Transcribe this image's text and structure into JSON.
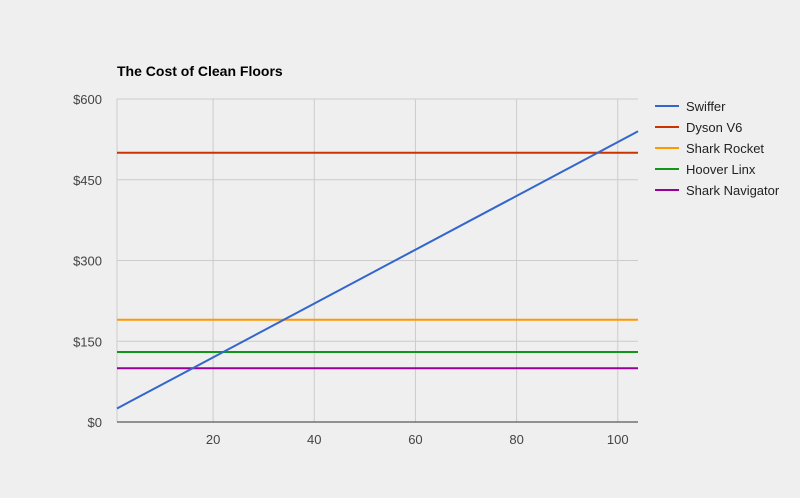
{
  "chart_data": {
    "type": "line",
    "title": "The Cost of Clean Floors",
    "xlabel": "",
    "ylabel": "",
    "xlim": [
      1,
      104
    ],
    "ylim": [
      0,
      600
    ],
    "x_ticks": [
      20,
      40,
      60,
      80,
      100
    ],
    "y_ticks": [
      0,
      150,
      300,
      450,
      600
    ],
    "y_tick_labels": [
      "$0",
      "$150",
      "$300",
      "$450",
      "$600"
    ],
    "grid": true,
    "legend_position": "right",
    "series": [
      {
        "name": "Swiffer",
        "color": "#3366cc",
        "x": [
          1,
          104
        ],
        "y": [
          25,
          540
        ]
      },
      {
        "name": "Dyson V6",
        "color": "#cc3300",
        "x": [
          1,
          104
        ],
        "y": [
          500,
          500
        ]
      },
      {
        "name": "Shark Rocket",
        "color": "#ff9900",
        "x": [
          1,
          104
        ],
        "y": [
          190,
          190
        ]
      },
      {
        "name": "Hoover Linx",
        "color": "#109618",
        "x": [
          1,
          104
        ],
        "y": [
          130,
          130
        ]
      },
      {
        "name": "Shark Navigator",
        "color": "#990099",
        "x": [
          1,
          104
        ],
        "y": [
          100,
          100
        ]
      }
    ]
  }
}
